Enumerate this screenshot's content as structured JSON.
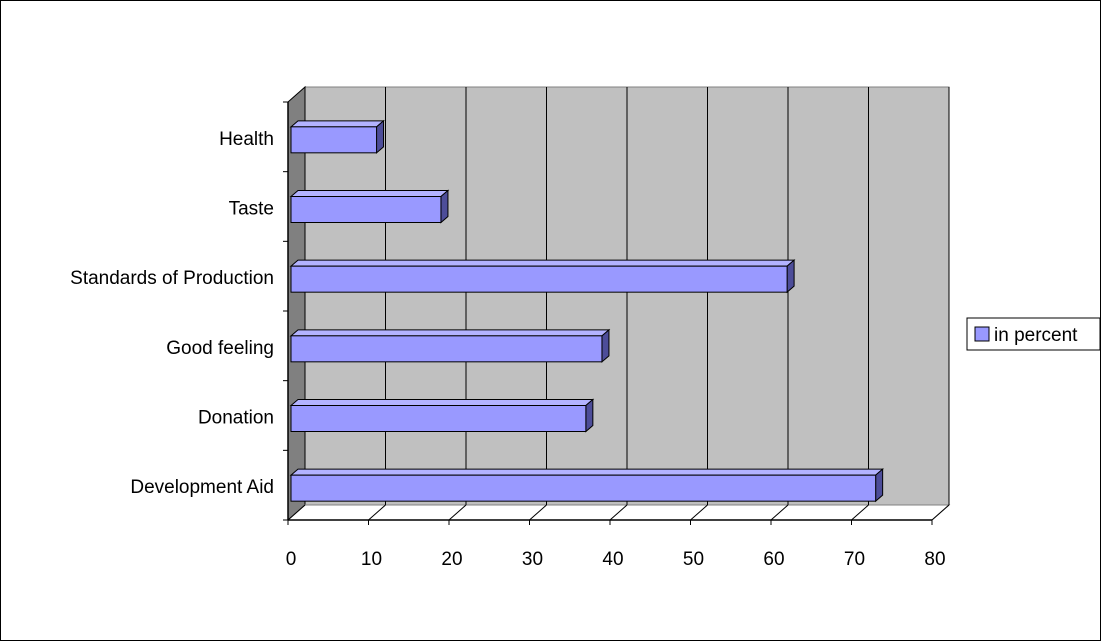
{
  "chart_data": {
    "type": "bar",
    "orientation": "horizontal",
    "style": "3d",
    "categories": [
      "Health",
      "Taste",
      "Standards of Production",
      "Good feeling",
      "Donation",
      "Development Aid"
    ],
    "series": [
      {
        "name": "in percent",
        "values": [
          11,
          19,
          62,
          39,
          37,
          73
        ],
        "color": "#9999ff"
      }
    ],
    "title": "",
    "xlabel": "",
    "ylabel": "",
    "xlim": [
      0,
      80
    ],
    "x_ticks": [
      "0",
      "10",
      "20",
      "30",
      "40",
      "50",
      "60",
      "70",
      "80"
    ],
    "grid": true,
    "legend_position": "right",
    "colors": {
      "plot_wall": "#c0c0c0",
      "plot_side": "#808080",
      "floor": "#ffffff",
      "bar_front": "#9999ff",
      "bar_top": "#b3b3ff",
      "bar_side": "#4d4d99"
    }
  }
}
